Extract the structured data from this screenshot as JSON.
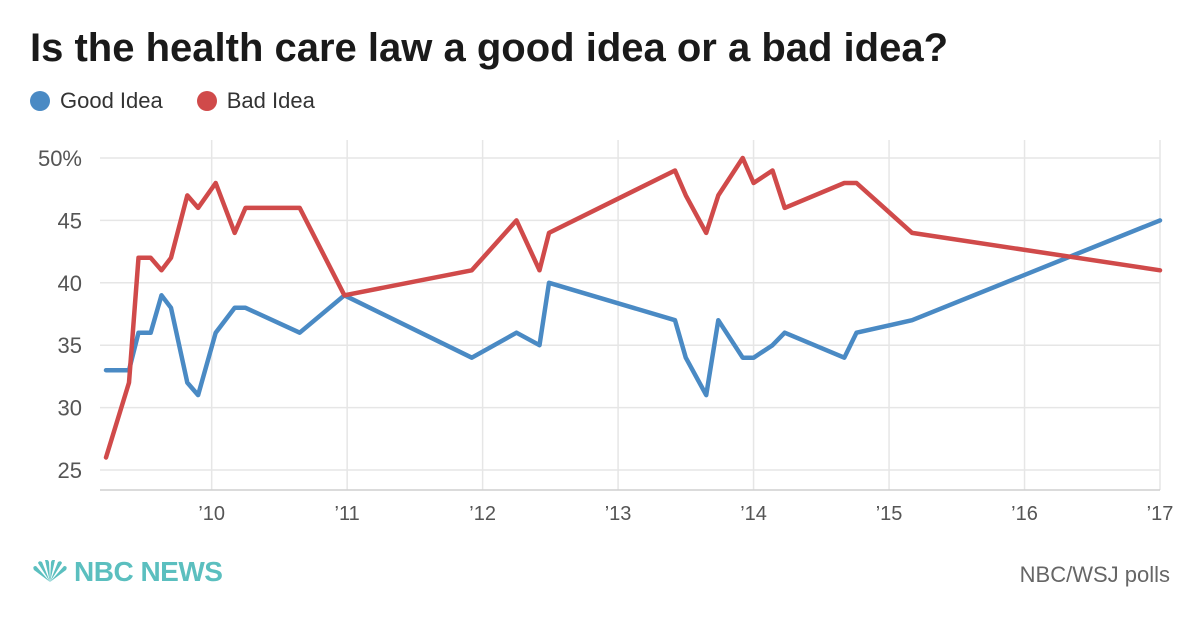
{
  "chart_data": {
    "type": "line",
    "title": "Is the health care law a good idea or a bad idea?",
    "xlabel": "",
    "ylabel": "",
    "ylim": [
      25,
      50
    ],
    "xlim": [
      2009.22,
      2017.0
    ],
    "y_ticks": [
      25,
      30,
      35,
      40,
      45,
      50
    ],
    "y_tick_labels": [
      "25",
      "30",
      "35",
      "40",
      "45",
      "50%"
    ],
    "x_ticks": [
      2010,
      2011,
      2012,
      2013,
      2014,
      2015,
      2016,
      2017
    ],
    "x_tick_labels": [
      "’10",
      "’11",
      "’12",
      "’13",
      "’14",
      "’15",
      "’16",
      "’17"
    ],
    "grid": true,
    "legend_position": "top-left",
    "series": [
      {
        "name": "Good Idea",
        "color": "#4a8ac4",
        "points": [
          [
            2009.22,
            33
          ],
          [
            2009.39,
            33
          ],
          [
            2009.46,
            36
          ],
          [
            2009.55,
            36
          ],
          [
            2009.63,
            39
          ],
          [
            2009.7,
            38
          ],
          [
            2009.82,
            32
          ],
          [
            2009.9,
            31
          ],
          [
            2010.03,
            36
          ],
          [
            2010.17,
            38
          ],
          [
            2010.25,
            38
          ],
          [
            2010.65,
            36
          ],
          [
            2010.98,
            39
          ],
          [
            2011.92,
            34
          ],
          [
            2012.25,
            36
          ],
          [
            2012.42,
            35
          ],
          [
            2012.49,
            40
          ],
          [
            2013.42,
            37
          ],
          [
            2013.5,
            34
          ],
          [
            2013.65,
            31
          ],
          [
            2013.74,
            37
          ],
          [
            2013.92,
            34
          ],
          [
            2014.0,
            34
          ],
          [
            2014.14,
            35
          ],
          [
            2014.23,
            36
          ],
          [
            2014.67,
            34
          ],
          [
            2014.76,
            36
          ],
          [
            2015.17,
            37
          ],
          [
            2017.0,
            45
          ]
        ]
      },
      {
        "name": "Bad Idea",
        "color": "#d04a4a",
        "points": [
          [
            2009.22,
            26
          ],
          [
            2009.39,
            32
          ],
          [
            2009.46,
            42
          ],
          [
            2009.55,
            42
          ],
          [
            2009.63,
            41
          ],
          [
            2009.7,
            42
          ],
          [
            2009.82,
            47
          ],
          [
            2009.9,
            46
          ],
          [
            2010.03,
            48
          ],
          [
            2010.17,
            44
          ],
          [
            2010.25,
            46
          ],
          [
            2010.65,
            46
          ],
          [
            2010.98,
            39
          ],
          [
            2011.92,
            41
          ],
          [
            2012.25,
            45
          ],
          [
            2012.42,
            41
          ],
          [
            2012.49,
            44
          ],
          [
            2013.42,
            49
          ],
          [
            2013.5,
            47
          ],
          [
            2013.65,
            44
          ],
          [
            2013.74,
            47
          ],
          [
            2013.92,
            50
          ],
          [
            2014.0,
            48
          ],
          [
            2014.14,
            49
          ],
          [
            2014.23,
            46
          ],
          [
            2014.67,
            48
          ],
          [
            2014.76,
            48
          ],
          [
            2015.17,
            44
          ],
          [
            2017.0,
            41
          ]
        ]
      }
    ]
  },
  "branding": {
    "logo_text": "NBC NEWS",
    "logo_color": "#5bbfbf",
    "source": "NBC/WSJ polls"
  }
}
